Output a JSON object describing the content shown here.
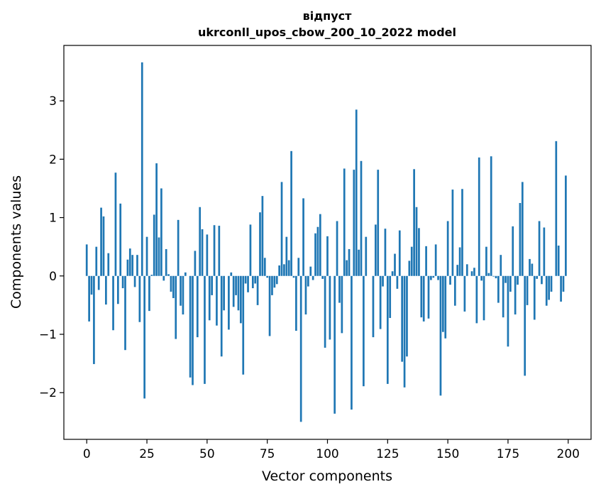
{
  "chart_data": {
    "type": "bar",
    "title": "відпуст",
    "subtitle": "ukrconll_upos_cbow_200_10_2022 model",
    "xlabel": "Vector components",
    "ylabel": "Components values",
    "xlim": [
      -9.5,
      209.5
    ],
    "ylim": [
      -2.8,
      3.95
    ],
    "xticks": [
      0,
      25,
      50,
      75,
      100,
      125,
      150,
      175,
      200
    ],
    "yticks": [
      -2,
      -1,
      0,
      1,
      2,
      3
    ],
    "grid": false,
    "bar_color": "#1f77b4",
    "x": [
      0,
      1,
      2,
      3,
      4,
      5,
      6,
      7,
      8,
      9,
      10,
      11,
      12,
      13,
      14,
      15,
      16,
      17,
      18,
      19,
      20,
      21,
      22,
      23,
      24,
      25,
      26,
      27,
      28,
      29,
      30,
      31,
      32,
      33,
      34,
      35,
      36,
      37,
      38,
      39,
      40,
      41,
      42,
      43,
      44,
      45,
      46,
      47,
      48,
      49,
      50,
      51,
      52,
      53,
      54,
      55,
      56,
      57,
      58,
      59,
      60,
      61,
      62,
      63,
      64,
      65,
      66,
      67,
      68,
      69,
      70,
      71,
      72,
      73,
      74,
      75,
      76,
      77,
      78,
      79,
      80,
      81,
      82,
      83,
      84,
      85,
      86,
      87,
      88,
      89,
      90,
      91,
      92,
      93,
      94,
      95,
      96,
      97,
      98,
      99,
      100,
      101,
      102,
      103,
      104,
      105,
      106,
      107,
      108,
      109,
      110,
      111,
      112,
      113,
      114,
      115,
      116,
      117,
      118,
      119,
      120,
      121,
      122,
      123,
      124,
      125,
      126,
      127,
      128,
      129,
      130,
      131,
      132,
      133,
      134,
      135,
      136,
      137,
      138,
      139,
      140,
      141,
      142,
      143,
      144,
      145,
      146,
      147,
      148,
      149,
      150,
      151,
      152,
      153,
      154,
      155,
      156,
      157,
      158,
      159,
      160,
      161,
      162,
      163,
      164,
      165,
      166,
      167,
      168,
      169,
      170,
      171,
      172,
      173,
      174,
      175,
      176,
      177,
      178,
      179,
      180,
      181,
      182,
      183,
      184,
      185,
      186,
      187,
      188,
      189,
      190,
      191,
      192,
      193,
      194,
      195,
      196,
      197,
      198,
      199
    ],
    "values": [
      0.54,
      -0.78,
      -0.32,
      -1.51,
      0.5,
      -0.24,
      1.17,
      1.02,
      -0.49,
      0.39,
      0.0,
      -0.93,
      1.77,
      -0.48,
      1.24,
      -0.21,
      -1.27,
      0.28,
      0.47,
      0.36,
      -0.19,
      0.36,
      -0.79,
      3.66,
      -2.1,
      0.67,
      -0.6,
      0.02,
      1.05,
      1.93,
      0.66,
      1.5,
      -0.08,
      0.46,
      0.03,
      -0.27,
      -0.38,
      -1.08,
      0.96,
      -0.51,
      -0.66,
      0.06,
      0.0,
      -1.74,
      -1.87,
      0.43,
      -1.05,
      1.18,
      0.8,
      -1.85,
      0.71,
      -0.76,
      -0.33,
      0.87,
      -0.85,
      0.86,
      -1.38,
      -0.59,
      0.0,
      -0.92,
      0.06,
      -0.53,
      -0.33,
      -0.59,
      -0.81,
      -1.69,
      -0.13,
      -0.28,
      0.88,
      -0.21,
      -0.13,
      -0.5,
      1.09,
      1.37,
      0.31,
      -0.03,
      -1.03,
      -0.33,
      -0.2,
      -0.14,
      0.18,
      1.61,
      0.2,
      0.67,
      0.27,
      2.14,
      -0.03,
      -0.94,
      0.31,
      -2.5,
      1.33,
      -0.66,
      -0.18,
      0.16,
      -0.07,
      0.73,
      0.84,
      1.06,
      -0.05,
      -1.23,
      0.68,
      -1.09,
      0.0,
      -2.36,
      0.94,
      -0.46,
      -0.98,
      1.84,
      0.27,
      0.46,
      -2.29,
      1.82,
      2.85,
      0.45,
      1.97,
      -1.89,
      0.67,
      0.0,
      0.0,
      -1.05,
      0.88,
      1.82,
      -0.91,
      -0.18,
      0.81,
      -1.85,
      -0.72,
      0.08,
      0.38,
      -0.22,
      0.78,
      -1.47,
      -1.91,
      -1.38,
      0.26,
      0.5,
      1.83,
      1.18,
      0.82,
      -0.71,
      -0.78,
      0.51,
      -0.73,
      -0.07,
      -0.03,
      0.54,
      -0.07,
      -2.05,
      -0.96,
      -1.07,
      0.94,
      -0.15,
      1.48,
      -0.51,
      0.19,
      0.49,
      1.49,
      -0.61,
      0.2,
      0.0,
      0.08,
      0.14,
      -0.81,
      2.03,
      -0.08,
      -0.76,
      0.5,
      0.05,
      2.05,
      -0.01,
      -0.04,
      -0.46,
      0.36,
      -0.71,
      -0.12,
      -1.21,
      -0.27,
      0.85,
      -0.66,
      -0.15,
      1.25,
      1.61,
      -1.71,
      -0.5,
      0.29,
      0.21,
      -0.75,
      -0.05,
      0.94,
      -0.14,
      0.83,
      -0.51,
      -0.41,
      -0.27,
      0.0,
      2.31,
      0.52,
      -0.44,
      -0.27,
      1.72
    ]
  }
}
